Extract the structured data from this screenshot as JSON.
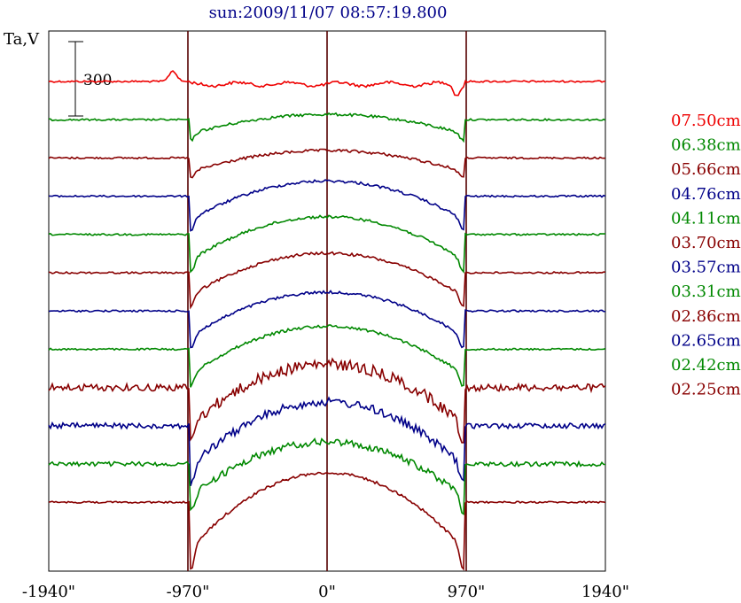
{
  "chart_data": {
    "type": "line",
    "title": "sun:2009/11/07 08:57:19.800",
    "ylabel": "Ta,V",
    "scale_bar_label": "300",
    "xlim": [
      -1940,
      1940
    ],
    "x_ticks": [
      {
        "value": -1940,
        "label": "-1940\""
      },
      {
        "value": -970,
        "label": "-970\""
      },
      {
        "value": 0,
        "label": "0\""
      },
      {
        "value": 970,
        "label": "970\""
      },
      {
        "value": 1940,
        "label": "1940\""
      }
    ],
    "vertical_lines": [
      -970,
      0,
      970
    ],
    "grid": false,
    "legend_position": "right",
    "series": [
      {
        "name": "07.50cm",
        "color": "#ee0000",
        "profile": "flare",
        "rise": 30,
        "limb": 18,
        "noise": 2
      },
      {
        "name": "06.38cm",
        "color": "#008800",
        "profile": "disk",
        "rise": 18,
        "limb": 12,
        "noise": 2
      },
      {
        "name": "05.66cm",
        "color": "#880000",
        "profile": "disk",
        "rise": 22,
        "limb": 12,
        "noise": 2
      },
      {
        "name": "04.76cm",
        "color": "#000088",
        "profile": "disk",
        "rise": 42,
        "limb": 20,
        "noise": 2
      },
      {
        "name": "04.11cm",
        "color": "#008800",
        "profile": "disk",
        "rise": 48,
        "limb": 22,
        "noise": 2
      },
      {
        "name": "03.70cm",
        "color": "#880000",
        "profile": "disk",
        "rise": 50,
        "limb": 20,
        "noise": 2
      },
      {
        "name": "03.57cm",
        "color": "#000088",
        "profile": "disk",
        "rise": 50,
        "limb": 22,
        "noise": 2
      },
      {
        "name": "03.31cm",
        "color": "#008800",
        "profile": "disk",
        "rise": 58,
        "limb": 22,
        "noise": 2
      },
      {
        "name": "02.86cm",
        "color": "#880000",
        "profile": "noisy",
        "rise": 65,
        "limb": 32,
        "noise": 8
      },
      {
        "name": "02.65cm",
        "color": "#000088",
        "profile": "noisy",
        "rise": 68,
        "limb": 35,
        "noise": 6
      },
      {
        "name": "02.42cm",
        "color": "#008800",
        "profile": "noisy",
        "rise": 60,
        "limb": 28,
        "noise": 5
      },
      {
        "name": "02.25cm",
        "color": "#880000",
        "profile": "disk",
        "rise": 82,
        "limb": 40,
        "noise": 2
      }
    ]
  }
}
